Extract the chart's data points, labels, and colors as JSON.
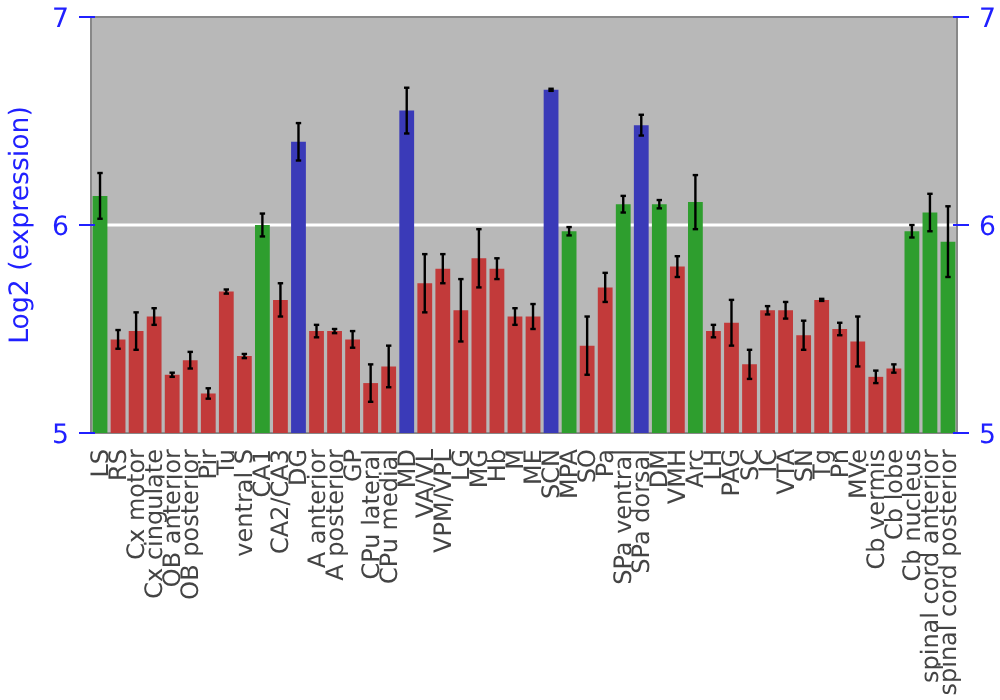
{
  "chart_data": {
    "type": "bar",
    "ylabel": "Log2 (expression)",
    "categories": [
      "LS",
      "RS",
      "Cx motor",
      "Cx cingulate",
      "OB anterior",
      "OB posterior",
      "Pir",
      "Tu",
      "ventral S",
      "CA1",
      "CA2/CA3",
      "DG",
      "A anterior",
      "A posterior",
      "GP",
      "CPu lateral",
      "CPu medial",
      "MD",
      "VA/VL",
      "VPM/VPL",
      "LG",
      "MG",
      "Hb",
      "M",
      "ME",
      "SCN",
      "MPA",
      "SO",
      "Pa",
      "SPa ventral",
      "SPa dorsal",
      "DM",
      "VMH",
      "Arc",
      "LH",
      "PAG",
      "SC",
      "IC",
      "VTA",
      "SN",
      "Tg",
      "Pn",
      "MVe",
      "Cb vermis",
      "Cb lobe",
      "Cb nucleus",
      "spinal cord anterior",
      "spinal cord posterior"
    ],
    "values": [
      6.14,
      5.45,
      5.49,
      5.56,
      5.28,
      5.35,
      5.19,
      5.68,
      5.37,
      6.0,
      5.64,
      6.4,
      5.49,
      5.49,
      5.45,
      5.24,
      5.32,
      6.55,
      5.72,
      5.79,
      5.59,
      5.84,
      5.79,
      5.56,
      5.56,
      6.65,
      5.97,
      5.42,
      5.7,
      6.1,
      6.48,
      6.1,
      5.8,
      6.11,
      5.49,
      5.53,
      5.33,
      5.59,
      5.59,
      5.47,
      5.64,
      5.5,
      5.44,
      5.27,
      5.31,
      5.97,
      6.06,
      5.92
    ],
    "errors": [
      0.11,
      0.045,
      0.09,
      0.04,
      0.01,
      0.04,
      0.025,
      0.01,
      0.01,
      0.055,
      0.08,
      0.09,
      0.03,
      0.01,
      0.04,
      0.09,
      0.1,
      0.11,
      0.14,
      0.07,
      0.15,
      0.14,
      0.05,
      0.04,
      0.06,
      0.005,
      0.02,
      0.14,
      0.07,
      0.04,
      0.05,
      0.02,
      0.05,
      0.13,
      0.03,
      0.11,
      0.07,
      0.02,
      0.04,
      0.07,
      0.005,
      0.03,
      0.12,
      0.03,
      0.02,
      0.03,
      0.09,
      0.17
    ],
    "colors": [
      "#2e9e2e",
      "#c23a3a",
      "#c23a3a",
      "#c23a3a",
      "#c23a3a",
      "#c23a3a",
      "#c23a3a",
      "#c23a3a",
      "#c23a3a",
      "#2e9e2e",
      "#c23a3a",
      "#3a3ab8",
      "#c23a3a",
      "#c23a3a",
      "#c23a3a",
      "#c23a3a",
      "#c23a3a",
      "#3a3ab8",
      "#c23a3a",
      "#c23a3a",
      "#c23a3a",
      "#c23a3a",
      "#c23a3a",
      "#c23a3a",
      "#c23a3a",
      "#3a3ab8",
      "#2e9e2e",
      "#c23a3a",
      "#c23a3a",
      "#2e9e2e",
      "#3a3ab8",
      "#2e9e2e",
      "#c23a3a",
      "#2e9e2e",
      "#c23a3a",
      "#c23a3a",
      "#c23a3a",
      "#c23a3a",
      "#c23a3a",
      "#c23a3a",
      "#c23a3a",
      "#c23a3a",
      "#c23a3a",
      "#c23a3a",
      "#c23a3a",
      "#2e9e2e",
      "#2e9e2e",
      "#2e9e2e"
    ],
    "ylim": [
      5,
      7
    ],
    "yticks": [
      5,
      6,
      7
    ],
    "y2lim": [
      5,
      7
    ],
    "y2ticks": [
      5,
      6,
      7
    ],
    "grid": "y"
  }
}
